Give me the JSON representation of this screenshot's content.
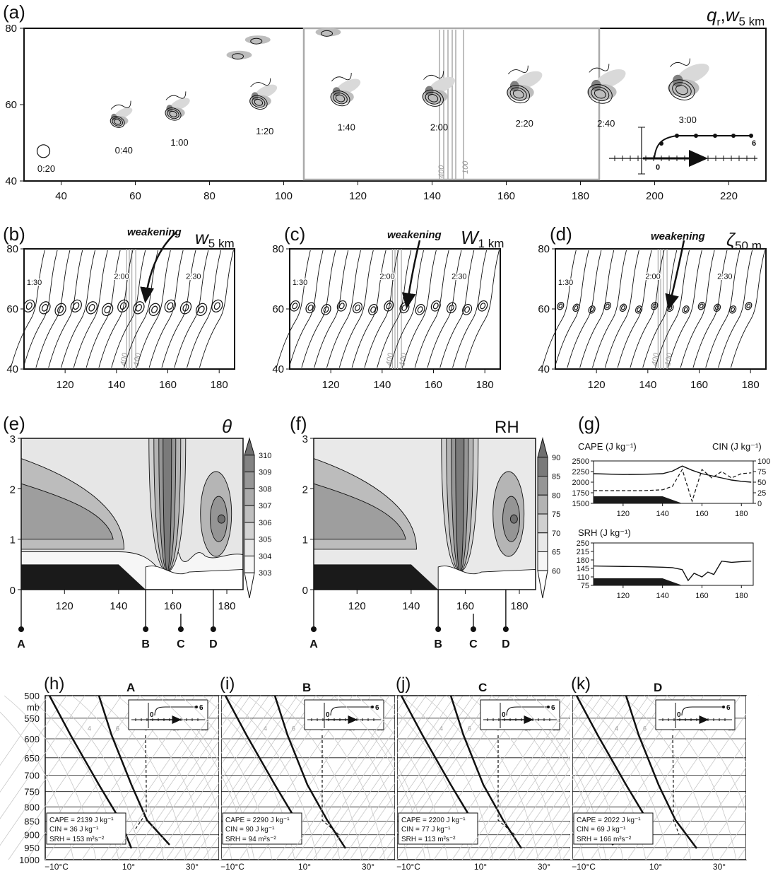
{
  "colors": {
    "ink": "#111111",
    "shade1": "#eeeeee",
    "shade2": "#d9d9d9",
    "shade3": "#bdbdbd",
    "shade4": "#9e9e9e",
    "shade5": "#808080",
    "shade6": "#666666",
    "terrain": "#1a1a1a",
    "gray_lines": "#9a9a9a"
  },
  "panel_a": {
    "label": "(a)",
    "var_q": "q",
    "var_q_sub": "r",
    "var_sep": ",",
    "var_w": "w",
    "var_w_sub": "5 km",
    "x_ticks": [
      "40",
      "60",
      "80",
      "100",
      "120",
      "140",
      "160",
      "180",
      "200",
      "220"
    ],
    "y_ticks": [
      "40",
      "60",
      "80"
    ],
    "times": [
      "0:20",
      "0:40",
      "1:00",
      "1:20",
      "1:40",
      "2:00",
      "2:20",
      "2:40",
      "3:00"
    ],
    "line_labels": [
      "400",
      "100"
    ],
    "hodo_labels": [
      "0",
      "6"
    ]
  },
  "panel_b": {
    "label": "(b)",
    "var": "w",
    "var_sub": "5 km",
    "note": "weakening",
    "times": [
      "1:30",
      "2:00",
      "2:30"
    ],
    "line_labels": [
      "400",
      "100"
    ],
    "x_ticks": [
      "120",
      "140",
      "160",
      "180"
    ],
    "y_ticks": [
      "40",
      "60",
      "80"
    ]
  },
  "panel_c": {
    "label": "(c)",
    "var": "W",
    "var_sub": "1 km",
    "note": "weakening",
    "times": [
      "1:30",
      "2:00",
      "2:30"
    ],
    "line_labels": [
      "400",
      "100"
    ],
    "x_ticks": [
      "120",
      "140",
      "160",
      "180"
    ],
    "y_ticks": [
      "40",
      "60",
      "80"
    ]
  },
  "panel_d": {
    "label": "(d)",
    "var": "ζ",
    "var_sub": "50 m",
    "note": "weakening",
    "times": [
      "1:30",
      "2:00",
      "2:30"
    ],
    "line_labels": [
      "400",
      "100"
    ],
    "x_ticks": [
      "120",
      "140",
      "160",
      "180"
    ],
    "y_ticks": [
      "40",
      "60",
      "80"
    ]
  },
  "panel_e": {
    "label": "(e)",
    "var": "θ",
    "x_ticks": [
      "120",
      "140",
      "160",
      "180"
    ],
    "y_ticks": [
      "0",
      "1",
      "2",
      "3"
    ],
    "colorbar": [
      "310",
      "309",
      "308",
      "307",
      "306",
      "305",
      "304",
      "303"
    ],
    "points": [
      "A",
      "B",
      "C",
      "D"
    ]
  },
  "panel_f": {
    "label": "(f)",
    "var": "RH",
    "x_ticks": [
      "120",
      "140",
      "160",
      "180"
    ],
    "y_ticks": [
      "0",
      "1",
      "2",
      "3"
    ],
    "colorbar": [
      "90",
      "85",
      "80",
      "75",
      "70",
      "65",
      "60"
    ],
    "points": [
      "A",
      "B",
      "C",
      "D"
    ]
  },
  "panel_g": {
    "label": "(g)",
    "cape_label": "CAPE (J kg⁻¹)",
    "cin_label": "CIN (J kg⁻¹)",
    "srh_label": "SRH (J kg⁻¹)",
    "cape_ticks": [
      "2500",
      "2250",
      "2000",
      "1750",
      "1500"
    ],
    "cin_ticks": [
      "100",
      "75",
      "50",
      "25",
      "0"
    ],
    "srh_ticks": [
      "250",
      "215",
      "180",
      "145",
      "110",
      "75"
    ],
    "x_ticks": [
      "120",
      "140",
      "160",
      "180"
    ]
  },
  "soundings": {
    "pressure_unit": "mb",
    "p_ticks": [
      "500",
      "550",
      "600",
      "650",
      "700",
      "750",
      "800",
      "850",
      "900",
      "950",
      "1000"
    ],
    "t_ticks": [
      "−10°C",
      "10°",
      "30°"
    ],
    "mixing_ratio_labels": [
      "4",
      "6",
      "8",
      "10",
      "12"
    ],
    "hodo_labels": [
      "0",
      "6"
    ],
    "panels": [
      {
        "label": "(h)",
        "site": "A",
        "cape": "CAPE = 2139 J kg⁻¹",
        "cin": "CIN = 36 J kg⁻¹",
        "srh": "SRH = 153 m²s⁻²"
      },
      {
        "label": "(i)",
        "site": "B",
        "cape": "CAPE = 2290 J kg⁻¹",
        "cin": "CIN = 90 J kg⁻¹",
        "srh": "SRH = 94 m²s⁻²"
      },
      {
        "label": "(j)",
        "site": "C",
        "cape": "CAPE = 2200 J kg⁻¹",
        "cin": "CIN = 77 J kg⁻¹",
        "srh": "SRH = 113 m²s⁻²"
      },
      {
        "label": "(k)",
        "site": "D",
        "cape": "CAPE = 2022 J kg⁻¹",
        "cin": "CIN = 69 J kg⁻¹",
        "srh": "SRH = 166 m²s⁻²"
      }
    ]
  },
  "chart_data": [
    {
      "panel": "a",
      "type": "contour",
      "xlim": [
        30,
        230
      ],
      "ylim": [
        40,
        80
      ],
      "storm_positions": [
        {
          "time": "0:20",
          "x": 36,
          "y": 48
        },
        {
          "time": "0:40",
          "x": 55,
          "y": 55
        },
        {
          "time": "1:00",
          "x": 70,
          "y": 57
        },
        {
          "time": "1:20",
          "x": 93,
          "y": 60
        },
        {
          "time": "1:40",
          "x": 115,
          "y": 61
        },
        {
          "time": "2:00",
          "x": 140,
          "y": 61
        },
        {
          "time": "2:20",
          "x": 163,
          "y": 62
        },
        {
          "time": "2:40",
          "x": 185,
          "y": 62
        },
        {
          "time": "3:00",
          "x": 207,
          "y": 63
        }
      ]
    },
    {
      "panel": "g-cape",
      "type": "line",
      "x": [
        105,
        120,
        130,
        140,
        145,
        150,
        155,
        160,
        165,
        170,
        175,
        180,
        185
      ],
      "cape": [
        2200,
        2180,
        2185,
        2200,
        2260,
        2380,
        2280,
        2200,
        2150,
        2100,
        2050,
        2020,
        2000
      ],
      "cin": [
        30,
        30,
        30,
        32,
        40,
        80,
        5,
        80,
        60,
        75,
        60,
        70,
        72
      ]
    },
    {
      "panel": "g-srh",
      "type": "line",
      "x": [
        105,
        120,
        130,
        140,
        145,
        150,
        153,
        156,
        160,
        163,
        166,
        170,
        175,
        180,
        185
      ],
      "srh": [
        155,
        153,
        152,
        150,
        148,
        140,
        95,
        125,
        110,
        130,
        120,
        175,
        170,
        173,
        175
      ]
    }
  ]
}
